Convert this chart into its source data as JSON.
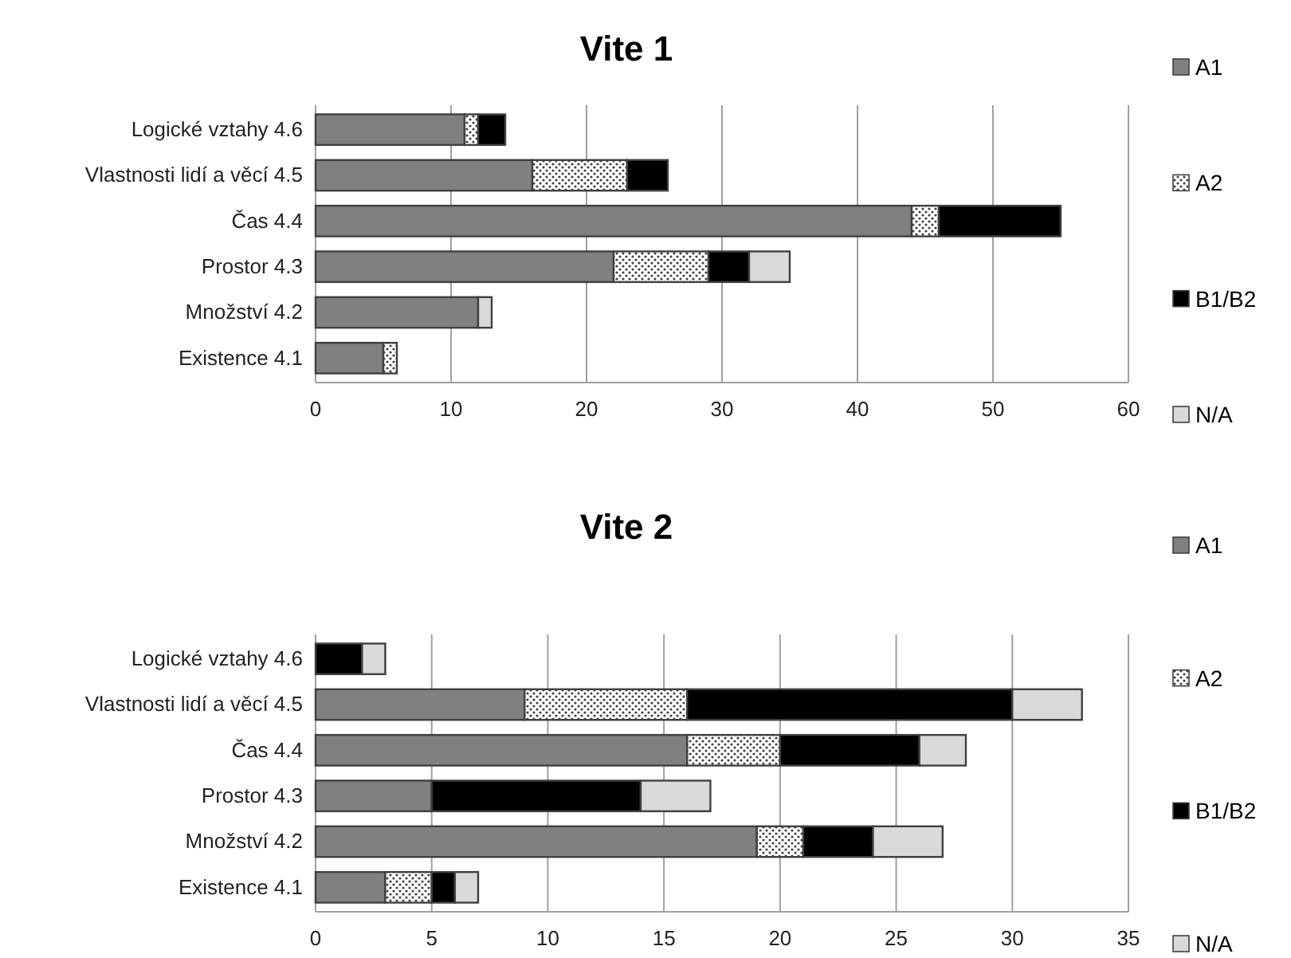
{
  "chart_data": [
    {
      "type": "bar",
      "title": "Vite 1",
      "orientation": "horizontal",
      "stacked": true,
      "grid": "x",
      "legend": "right",
      "categories": [
        "Logické vztahy 4.6",
        "Vlastnosti lidí a věcí 4.5",
        "Čas 4.4",
        "Prostor 4.3",
        "Množství 4.2",
        "Existence 4.1"
      ],
      "xlim": [
        0,
        60
      ],
      "xticks": [
        0,
        10,
        20,
        30,
        40,
        50,
        60
      ],
      "series": [
        {
          "name": "A1",
          "color": "#808080",
          "values": [
            11,
            16,
            44,
            22,
            12,
            5
          ]
        },
        {
          "name": "A2",
          "color": "#404040",
          "values": [
            1,
            7,
            2,
            7,
            0,
            1
          ]
        },
        {
          "name": "B1/B2",
          "color": "#000000",
          "values": [
            2,
            3,
            9,
            3,
            0,
            0
          ]
        },
        {
          "name": "N/A",
          "color": "#d9d9d9",
          "values": [
            0,
            0,
            0,
            3,
            1,
            0
          ]
        }
      ]
    },
    {
      "type": "bar",
      "title": "Vite 2",
      "orientation": "horizontal",
      "stacked": true,
      "grid": "x",
      "legend": "right",
      "categories": [
        "Logické vztahy 4.6",
        "Vlastnosti lidí a věcí 4.5",
        "Čas 4.4",
        "Prostor 4.3",
        "Množství 4.2",
        "Existence 4.1"
      ],
      "xlim": [
        0,
        35
      ],
      "xticks": [
        0,
        5,
        10,
        15,
        20,
        25,
        30,
        35
      ],
      "series": [
        {
          "name": "A1",
          "color": "#808080",
          "values": [
            0,
            9,
            16,
            5,
            19,
            3
          ]
        },
        {
          "name": "A2",
          "color": "#404040",
          "values": [
            0,
            7,
            4,
            0,
            2,
            2
          ]
        },
        {
          "name": "B1/B2",
          "color": "#000000",
          "values": [
            2,
            14,
            6,
            9,
            3,
            1
          ]
        },
        {
          "name": "N/A",
          "color": "#d9d9d9",
          "values": [
            1,
            3,
            2,
            3,
            3,
            1
          ]
        }
      ]
    }
  ]
}
